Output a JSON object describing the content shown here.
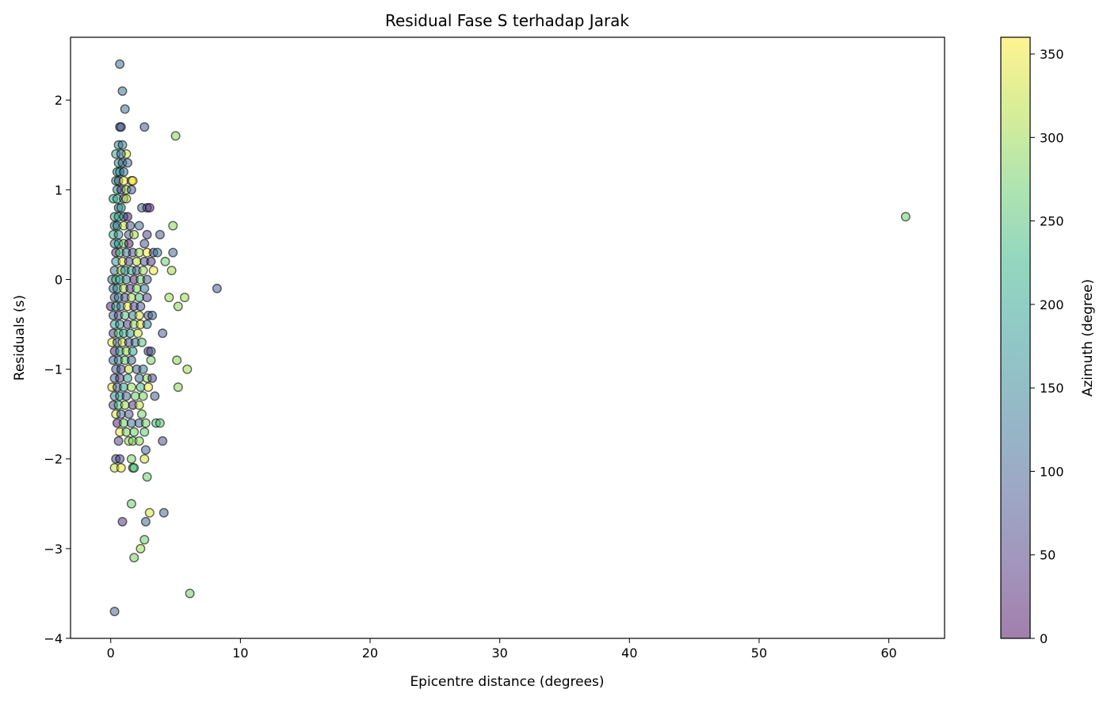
{
  "chart_data": {
    "type": "scatter",
    "title": "Residual Fase S terhadap Jarak",
    "xlabel": "Epicentre distance (degrees)",
    "ylabel": "Residuals (s)",
    "xlim": [
      -3.1,
      64.3
    ],
    "ylim": [
      -4,
      2.7
    ],
    "xticks": [
      0,
      10,
      20,
      30,
      40,
      50,
      60
    ],
    "yticks": [
      -4,
      -3,
      -2,
      -1,
      0,
      1,
      2
    ],
    "xtick_labels": [
      "0",
      "10",
      "20",
      "30",
      "40",
      "50",
      "60"
    ],
    "ytick_labels": [
      "−4",
      "−3",
      "−2",
      "−1",
      "0",
      "1",
      "2"
    ],
    "grid": false,
    "colorbar": {
      "label": "Azimuth (degree)",
      "range": [
        0,
        360
      ],
      "ticks": [
        0,
        50,
        100,
        150,
        200,
        250,
        300,
        350
      ],
      "tick_labels": [
        "0",
        "50",
        "100",
        "150",
        "200",
        "250",
        "300",
        "350"
      ],
      "colormap": "viridis",
      "alpha": 0.5
    },
    "points": [
      [
        0.7,
        2.4,
        110
      ],
      [
        0.9,
        2.1,
        120
      ],
      [
        1.1,
        1.9,
        115
      ],
      [
        2.6,
        1.7,
        80
      ],
      [
        0.7,
        1.7,
        150
      ],
      [
        0.8,
        1.7,
        60
      ],
      [
        5.0,
        1.6,
        290
      ],
      [
        0.6,
        1.5,
        170
      ],
      [
        0.9,
        1.5,
        140
      ],
      [
        1.2,
        1.4,
        340
      ],
      [
        0.4,
        1.4,
        190
      ],
      [
        0.8,
        1.4,
        130
      ],
      [
        0.6,
        1.3,
        170
      ],
      [
        0.9,
        1.3,
        110
      ],
      [
        1.3,
        1.3,
        120
      ],
      [
        0.5,
        1.2,
        180
      ],
      [
        0.7,
        1.2,
        160
      ],
      [
        1.0,
        1.2,
        130
      ],
      [
        0.4,
        1.1,
        200
      ],
      [
        0.6,
        1.1,
        80
      ],
      [
        1.0,
        1.1,
        350
      ],
      [
        1.6,
        1.1,
        340
      ],
      [
        1.7,
        1.1,
        360
      ],
      [
        0.5,
        1.0,
        170
      ],
      [
        0.8,
        1.0,
        40
      ],
      [
        1.2,
        1.0,
        300
      ],
      [
        1.6,
        1.0,
        90
      ],
      [
        0.2,
        0.9,
        190
      ],
      [
        0.5,
        0.9,
        230
      ],
      [
        1.0,
        0.9,
        120
      ],
      [
        1.2,
        0.9,
        330
      ],
      [
        0.6,
        0.8,
        120
      ],
      [
        0.8,
        0.8,
        200
      ],
      [
        2.4,
        0.8,
        100
      ],
      [
        2.8,
        0.8,
        60
      ],
      [
        3.0,
        0.8,
        40
      ],
      [
        0.3,
        0.7,
        190
      ],
      [
        0.6,
        0.7,
        210
      ],
      [
        1.0,
        0.7,
        150
      ],
      [
        1.3,
        0.7,
        20
      ],
      [
        0.3,
        0.6,
        160
      ],
      [
        0.5,
        0.6,
        140
      ],
      [
        1.0,
        0.6,
        320
      ],
      [
        1.5,
        0.6,
        80
      ],
      [
        2.2,
        0.6,
        110
      ],
      [
        4.8,
        0.6,
        290
      ],
      [
        61.3,
        0.7,
        270
      ],
      [
        0.2,
        0.5,
        230
      ],
      [
        0.6,
        0.5,
        170
      ],
      [
        1.4,
        0.5,
        90
      ],
      [
        1.8,
        0.5,
        300
      ],
      [
        2.8,
        0.5,
        60
      ],
      [
        3.8,
        0.5,
        90
      ],
      [
        0.3,
        0.4,
        160
      ],
      [
        0.6,
        0.4,
        190
      ],
      [
        1.0,
        0.4,
        280
      ],
      [
        1.4,
        0.4,
        10
      ],
      [
        2.6,
        0.4,
        80
      ],
      [
        0.4,
        0.3,
        30
      ],
      [
        0.7,
        0.3,
        250
      ],
      [
        1.2,
        0.3,
        130
      ],
      [
        1.7,
        0.3,
        70
      ],
      [
        2.2,
        0.3,
        300
      ],
      [
        2.8,
        0.3,
        360
      ],
      [
        3.3,
        0.3,
        80
      ],
      [
        3.6,
        0.3,
        140
      ],
      [
        4.8,
        0.3,
        100
      ],
      [
        0.4,
        0.2,
        180
      ],
      [
        0.9,
        0.2,
        340
      ],
      [
        1.4,
        0.2,
        60
      ],
      [
        2.0,
        0.2,
        320
      ],
      [
        2.6,
        0.2,
        90
      ],
      [
        3.1,
        0.2,
        40
      ],
      [
        4.2,
        0.2,
        270
      ],
      [
        0.3,
        0.1,
        130
      ],
      [
        0.8,
        0.1,
        300
      ],
      [
        1.1,
        0.1,
        160
      ],
      [
        1.6,
        0.1,
        220
      ],
      [
        2.0,
        0.1,
        90
      ],
      [
        2.5,
        0.1,
        300
      ],
      [
        3.3,
        0.1,
        350
      ],
      [
        4.7,
        0.1,
        300
      ],
      [
        0.1,
        0.0,
        130
      ],
      [
        0.4,
        0.0,
        250
      ],
      [
        0.7,
        0.0,
        190
      ],
      [
        1.2,
        0.0,
        150
      ],
      [
        1.8,
        0.0,
        20
      ],
      [
        2.3,
        0.0,
        270
      ],
      [
        2.8,
        0.0,
        100
      ],
      [
        8.2,
        -0.1,
        90
      ],
      [
        0.2,
        -0.1,
        110
      ],
      [
        0.5,
        -0.1,
        170
      ],
      [
        1.0,
        -0.1,
        310
      ],
      [
        1.5,
        -0.1,
        50
      ],
      [
        2.0,
        -0.1,
        280
      ],
      [
        2.6,
        -0.1,
        130
      ],
      [
        0.3,
        -0.2,
        80
      ],
      [
        0.6,
        -0.2,
        160
      ],
      [
        1.1,
        -0.2,
        70
      ],
      [
        1.6,
        -0.2,
        300
      ],
      [
        2.2,
        -0.2,
        240
      ],
      [
        2.8,
        -0.2,
        60
      ],
      [
        4.5,
        -0.2,
        300
      ],
      [
        5.7,
        -0.2,
        300
      ],
      [
        0.0,
        -0.3,
        30
      ],
      [
        0.4,
        -0.3,
        200
      ],
      [
        0.8,
        -0.3,
        120
      ],
      [
        1.3,
        -0.3,
        350
      ],
      [
        1.8,
        -0.3,
        50
      ],
      [
        2.3,
        -0.3,
        90
      ],
      [
        5.2,
        -0.3,
        290
      ],
      [
        0.2,
        -0.4,
        120
      ],
      [
        0.6,
        -0.4,
        70
      ],
      [
        1.1,
        -0.4,
        250
      ],
      [
        1.7,
        -0.4,
        140
      ],
      [
        2.2,
        -0.4,
        330
      ],
      [
        2.9,
        -0.4,
        80
      ],
      [
        3.2,
        -0.4,
        110
      ],
      [
        0.3,
        -0.5,
        190
      ],
      [
        0.7,
        -0.5,
        170
      ],
      [
        1.3,
        -0.5,
        50
      ],
      [
        1.8,
        -0.5,
        290
      ],
      [
        2.3,
        -0.5,
        340
      ],
      [
        2.8,
        -0.5,
        150
      ],
      [
        0.2,
        -0.6,
        60
      ],
      [
        0.6,
        -0.6,
        260
      ],
      [
        1.0,
        -0.6,
        210
      ],
      [
        1.5,
        -0.6,
        180
      ],
      [
        2.1,
        -0.6,
        330
      ],
      [
        4.0,
        -0.6,
        90
      ],
      [
        0.1,
        -0.7,
        350
      ],
      [
        0.5,
        -0.7,
        110
      ],
      [
        0.9,
        -0.7,
        330
      ],
      [
        1.4,
        -0.7,
        70
      ],
      [
        1.9,
        -0.7,
        130
      ],
      [
        2.4,
        -0.7,
        250
      ],
      [
        0.3,
        -0.8,
        20
      ],
      [
        0.7,
        -0.8,
        190
      ],
      [
        1.2,
        -0.8,
        300
      ],
      [
        1.7,
        -0.8,
        200
      ],
      [
        2.9,
        -0.8,
        60
      ],
      [
        3.1,
        -0.8,
        80
      ],
      [
        0.2,
        -0.9,
        120
      ],
      [
        0.6,
        -0.9,
        140
      ],
      [
        1.1,
        -0.9,
        270
      ],
      [
        1.6,
        -0.9,
        110
      ],
      [
        3.1,
        -0.9,
        280
      ],
      [
        5.1,
        -0.9,
        290
      ],
      [
        0.4,
        -1.0,
        90
      ],
      [
        0.8,
        -1.0,
        60
      ],
      [
        1.4,
        -1.0,
        320
      ],
      [
        2.0,
        -1.0,
        100
      ],
      [
        2.5,
        -1.0,
        130
      ],
      [
        5.9,
        -1.0,
        300
      ],
      [
        0.3,
        -1.1,
        110
      ],
      [
        0.7,
        -1.1,
        50
      ],
      [
        1.3,
        -1.1,
        210
      ],
      [
        2.2,
        -1.1,
        120
      ],
      [
        2.8,
        -1.1,
        290
      ],
      [
        3.2,
        -1.1,
        60
      ],
      [
        0.1,
        -1.2,
        340
      ],
      [
        0.5,
        -1.2,
        70
      ],
      [
        1.0,
        -1.2,
        200
      ],
      [
        1.6,
        -1.2,
        300
      ],
      [
        2.3,
        -1.2,
        230
      ],
      [
        2.9,
        -1.2,
        350
      ],
      [
        5.2,
        -1.2,
        290
      ],
      [
        0.3,
        -1.3,
        150
      ],
      [
        0.7,
        -1.3,
        170
      ],
      [
        1.2,
        -1.3,
        100
      ],
      [
        1.9,
        -1.3,
        270
      ],
      [
        2.5,
        -1.3,
        280
      ],
      [
        3.4,
        -1.3,
        80
      ],
      [
        0.2,
        -1.4,
        70
      ],
      [
        0.6,
        -1.4,
        240
      ],
      [
        1.1,
        -1.4,
        300
      ],
      [
        1.7,
        -1.4,
        40
      ],
      [
        2.2,
        -1.4,
        320
      ],
      [
        0.4,
        -1.5,
        340
      ],
      [
        0.8,
        -1.5,
        110
      ],
      [
        1.4,
        -1.5,
        80
      ],
      [
        2.4,
        -1.5,
        280
      ],
      [
        0.5,
        -1.6,
        20
      ],
      [
        1.0,
        -1.6,
        270
      ],
      [
        1.6,
        -1.6,
        120
      ],
      [
        2.2,
        -1.6,
        110
      ],
      [
        2.7,
        -1.6,
        280
      ],
      [
        3.5,
        -1.6,
        240
      ],
      [
        3.8,
        -1.6,
        250
      ],
      [
        0.7,
        -1.7,
        350
      ],
      [
        1.2,
        -1.7,
        280
      ],
      [
        1.8,
        -1.7,
        270
      ],
      [
        2.6,
        -1.7,
        260
      ],
      [
        0.6,
        -1.8,
        60
      ],
      [
        1.4,
        -1.8,
        300
      ],
      [
        1.7,
        -1.8,
        280
      ],
      [
        2.2,
        -1.8,
        290
      ],
      [
        4.0,
        -1.8,
        70
      ],
      [
        2.7,
        -1.9,
        110
      ],
      [
        0.4,
        -2.0,
        70
      ],
      [
        0.7,
        -2.0,
        60
      ],
      [
        1.6,
        -2.0,
        280
      ],
      [
        2.6,
        -2.0,
        340
      ],
      [
        0.3,
        -2.1,
        330
      ],
      [
        0.8,
        -2.1,
        350
      ],
      [
        1.7,
        -2.1,
        260
      ],
      [
        1.8,
        -2.1,
        250
      ],
      [
        2.8,
        -2.2,
        270
      ],
      [
        1.6,
        -2.5,
        270
      ],
      [
        0.9,
        -2.7,
        40
      ],
      [
        2.7,
        -2.7,
        110
      ],
      [
        3.0,
        -2.6,
        340
      ],
      [
        4.1,
        -2.6,
        100
      ],
      [
        2.6,
        -2.9,
        270
      ],
      [
        2.3,
        -3.0,
        300
      ],
      [
        1.8,
        -3.1,
        280
      ],
      [
        6.1,
        -3.5,
        270
      ],
      [
        0.3,
        -3.7,
        100
      ]
    ]
  }
}
